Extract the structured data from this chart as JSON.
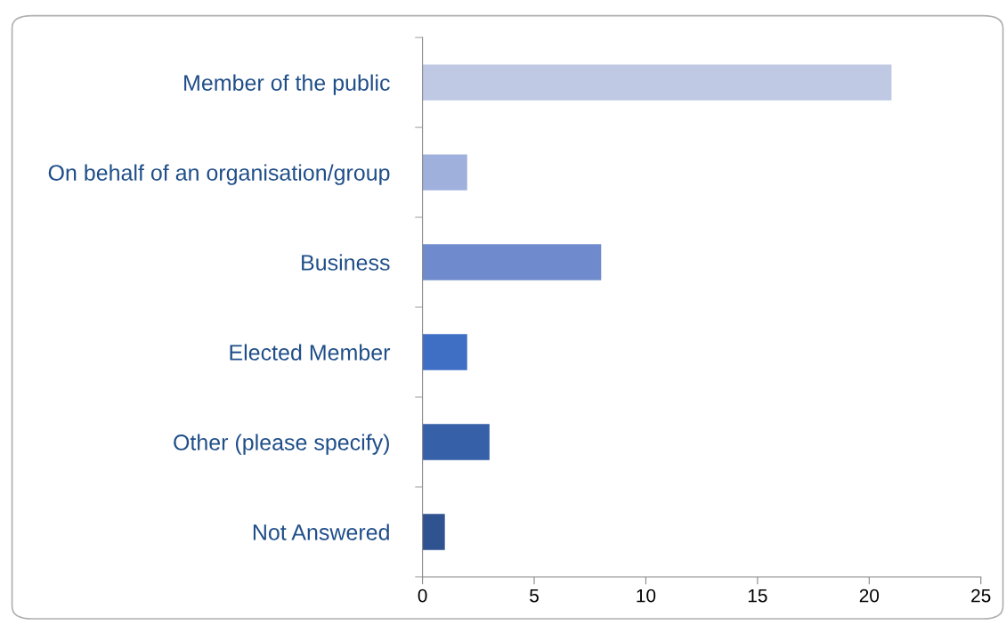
{
  "chart_data": {
    "type": "bar",
    "orientation": "horizontal",
    "categories": [
      "Member of the public",
      "On behalf of an organisation/group",
      "Business",
      "Elected Member",
      "Other (please specify)",
      "Not Answered"
    ],
    "values": [
      21,
      2,
      8,
      2,
      3,
      1
    ],
    "colors": [
      "#bfc9e4",
      "#a0b0dc",
      "#6f8bcd",
      "#3f6fc4",
      "#3660a8",
      "#2f5290"
    ],
    "xlim": [
      0,
      25
    ],
    "xticks": [
      0,
      5,
      10,
      15,
      20,
      25
    ],
    "grid": false,
    "legend": false
  }
}
